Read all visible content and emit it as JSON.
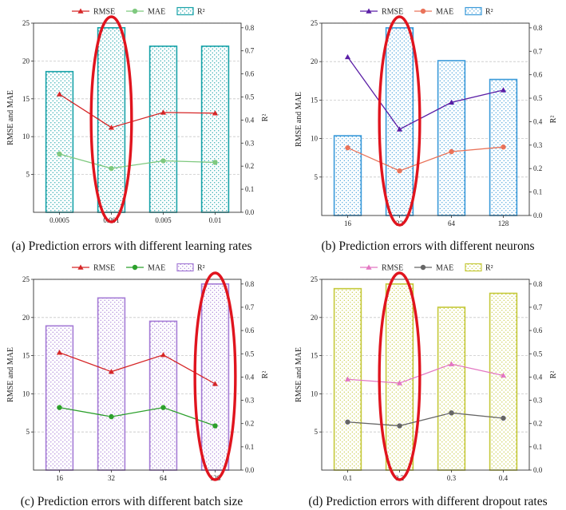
{
  "chart_data": [
    {
      "id": "a",
      "type": "bar",
      "title": "(a) Prediction errors with different learning rates",
      "categories": [
        "0.0005",
        "0.001",
        "0.005",
        "0.01"
      ],
      "ylabel": "RMSE and MAE",
      "y2label": "R²",
      "ylim": [
        0,
        25
      ],
      "y2lim": [
        0,
        0.82
      ],
      "yticks": [
        "5",
        "10",
        "15",
        "20",
        "25"
      ],
      "y2ticks": [
        "0.0",
        "0.1",
        "0.2",
        "0.3",
        "0.4",
        "0.5",
        "0.6",
        "0.7",
        "0.8"
      ],
      "series": [
        {
          "name": "RMSE",
          "kind": "line",
          "marker": "triangle",
          "color": "#d62728",
          "values": [
            15.6,
            11.2,
            13.2,
            13.1
          ]
        },
        {
          "name": "MAE",
          "kind": "line",
          "marker": "circle",
          "color": "#7fc97f",
          "values": [
            7.7,
            5.8,
            6.8,
            6.6
          ]
        },
        {
          "name": "R²",
          "kind": "bar",
          "axis": "right",
          "color": "#17a2a8",
          "values": [
            0.61,
            0.8,
            0.72,
            0.72
          ]
        }
      ],
      "highlight_index": 1
    },
    {
      "id": "b",
      "type": "bar",
      "title": "(b) Prediction errors with different neurons",
      "categories": [
        "16",
        "32",
        "64",
        "128"
      ],
      "ylabel": "RMSE and MAE",
      "y2label": "R²",
      "ylim": [
        0,
        25
      ],
      "y2lim": [
        0,
        0.82
      ],
      "yticks": [
        "5",
        "10",
        "15",
        "20",
        "25"
      ],
      "y2ticks": [
        "0.0",
        "0.1",
        "0.2",
        "0.3",
        "0.4",
        "0.5",
        "0.6",
        "0.7",
        "0.8"
      ],
      "series": [
        {
          "name": "RMSE",
          "kind": "line",
          "marker": "triangle",
          "color": "#5b1fa6",
          "values": [
            20.6,
            11.2,
            14.7,
            16.3
          ]
        },
        {
          "name": "MAE",
          "kind": "line",
          "marker": "circle",
          "color": "#e9735a",
          "values": [
            8.8,
            5.8,
            8.3,
            8.9
          ]
        },
        {
          "name": "R²",
          "kind": "bar",
          "axis": "right",
          "color": "#3a9ad9",
          "values": [
            0.34,
            0.8,
            0.66,
            0.58
          ]
        }
      ],
      "highlight_index": 1
    },
    {
      "id": "c",
      "type": "bar",
      "title": "(c) Prediction errors with different batch size",
      "categories": [
        "16",
        "32",
        "64",
        "128"
      ],
      "ylabel": "RMSE and MAE",
      "y2label": "R²",
      "ylim": [
        0,
        25
      ],
      "y2lim": [
        0,
        0.82
      ],
      "yticks": [
        "5",
        "10",
        "15",
        "20",
        "25"
      ],
      "y2ticks": [
        "0.0",
        "0.1",
        "0.2",
        "0.3",
        "0.4",
        "0.5",
        "0.6",
        "0.7",
        "0.8"
      ],
      "series": [
        {
          "name": "RMSE",
          "kind": "line",
          "marker": "triangle",
          "color": "#d62728",
          "values": [
            15.4,
            12.9,
            15.1,
            11.3
          ]
        },
        {
          "name": "MAE",
          "kind": "line",
          "marker": "circle",
          "color": "#2ca02c",
          "values": [
            8.2,
            7.0,
            8.2,
            5.8
          ]
        },
        {
          "name": "R²",
          "kind": "bar",
          "axis": "right",
          "color": "#a57cd6",
          "values": [
            0.62,
            0.74,
            0.64,
            0.8
          ]
        }
      ],
      "highlight_index": 3
    },
    {
      "id": "d",
      "type": "bar",
      "title": "(d) Prediction errors with different dropout rates",
      "categories": [
        "0.1",
        "0.2",
        "0.3",
        "0.4"
      ],
      "ylabel": "RMSE and MAE",
      "y2label": "R²",
      "ylim": [
        0,
        25
      ],
      "y2lim": [
        0,
        0.82
      ],
      "yticks": [
        "5",
        "10",
        "15",
        "20",
        "25"
      ],
      "y2ticks": [
        "0.0",
        "0.1",
        "0.2",
        "0.3",
        "0.4",
        "0.5",
        "0.6",
        "0.7",
        "0.8"
      ],
      "series": [
        {
          "name": "RMSE",
          "kind": "line",
          "marker": "triangle",
          "color": "#e377c2",
          "values": [
            11.9,
            11.4,
            13.9,
            12.4
          ]
        },
        {
          "name": "MAE",
          "kind": "line",
          "marker": "circle",
          "color": "#666666",
          "values": [
            6.3,
            5.8,
            7.5,
            6.8
          ]
        },
        {
          "name": "R²",
          "kind": "bar",
          "axis": "right",
          "color": "#c5c93a",
          "values": [
            0.78,
            0.8,
            0.7,
            0.76
          ]
        }
      ],
      "highlight_index": 1
    }
  ]
}
